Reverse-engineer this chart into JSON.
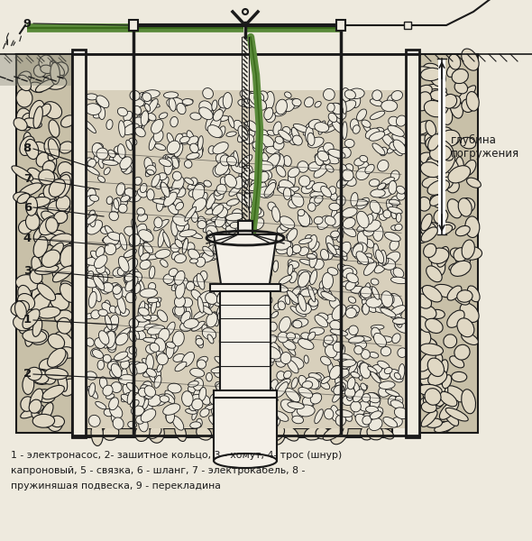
{
  "bg_color": "#eeeade",
  "line_color": "#1a1a1a",
  "green_color": "#5a8a3a",
  "green_dark": "#3a6a1a",
  "stone_outer_bg": "#c8c0a8",
  "stone_outer_fg": "#e0d8c4",
  "stone_inner_bg": "#d8d0bc",
  "stone_inner_fg": "#ece8dc",
  "pump_face": "#f4f0e8",
  "wall_face": "#f0ece0",
  "caption_line1": "1 - электронасос, 2- зашитное кольцо, 3 - хомут, 4- трос (шнур)",
  "caption_line2": "капроновый, 5 - связка, 6 - шланг, 7 - электрокабель, 8 -",
  "caption_line3": "пружиняшая подвеска, 9 - перекладина",
  "depth_label": "глубина\nпогружения",
  "fig_width": 5.9,
  "fig_height": 6.0
}
